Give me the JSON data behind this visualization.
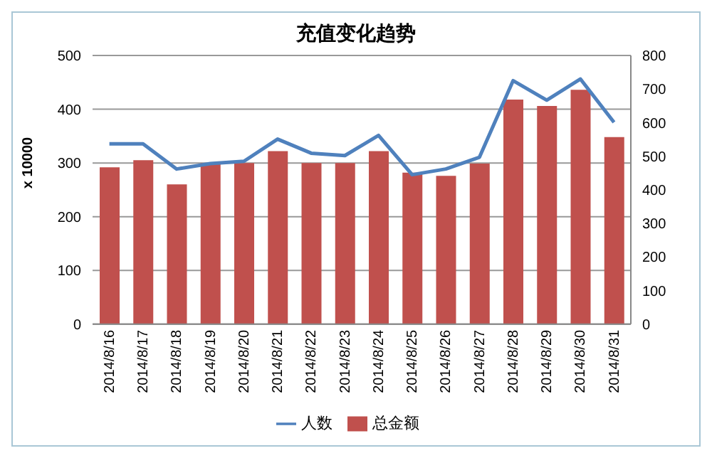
{
  "chart_data": {
    "type": "bar",
    "title": "充值变化趋势",
    "ylabel": "x 10000",
    "categories": [
      "2014/8/16",
      "2014/8/17",
      "2014/8/18",
      "2014/8/19",
      "2014/8/20",
      "2014/8/21",
      "2014/8/22",
      "2014/8/23",
      "2014/8/24",
      "2014/8/25",
      "2014/8/26",
      "2014/8/27",
      "2014/8/28",
      "2014/8/29",
      "2014/8/30",
      "2014/8/31"
    ],
    "series": [
      {
        "name": "总金额",
        "color": "#c0504d",
        "values": [
          292,
          305,
          260,
          300,
          300,
          322,
          300,
          300,
          322,
          282,
          276,
          299,
          418,
          406,
          436,
          348
        ]
      },
      {
        "name": "人数",
        "type": "line",
        "axis": "y2",
        "color": "#4f81bd",
        "values": [
          537,
          537,
          462,
          478,
          485,
          551,
          509,
          502,
          562,
          445,
          462,
          497,
          725,
          667,
          730,
          601
        ]
      }
    ],
    "ylim": [
      0,
      500
    ],
    "yticks": [
      0,
      100,
      200,
      300,
      400,
      500
    ],
    "y2lim": [
      0,
      800
    ],
    "y2ticks": [
      0,
      100,
      200,
      300,
      400,
      500,
      600,
      700,
      800
    ],
    "grid": "y",
    "legend": "bottom",
    "marker": "none"
  }
}
